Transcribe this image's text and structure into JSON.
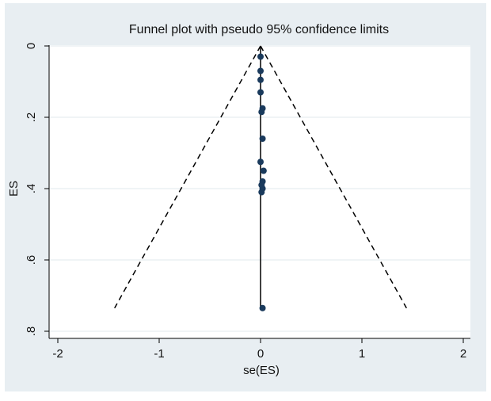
{
  "chart_data": {
    "type": "scatter",
    "title": "Funnel plot with pseudo 95% confidence limits",
    "xlabel": "se(ES)",
    "ylabel": "ES",
    "xlim": [
      -2,
      2
    ],
    "ylim": [
      0,
      0.8
    ],
    "y_reversed": true,
    "xticks": [
      -2,
      -1,
      0,
      1,
      2
    ],
    "xtick_labels": [
      "-2",
      "-1",
      "0",
      "1",
      "2"
    ],
    "yticks": [
      0,
      0.2,
      0.4,
      0.6,
      0.8
    ],
    "ytick_labels": [
      "0",
      ".2",
      ".4",
      ".6",
      ".8"
    ],
    "grid": true,
    "legend": "none",
    "points": [
      {
        "x": 0.0,
        "y": 0.03
      },
      {
        "x": 0.0,
        "y": 0.07
      },
      {
        "x": 0.0,
        "y": 0.095
      },
      {
        "x": 0.0,
        "y": 0.13
      },
      {
        "x": 0.02,
        "y": 0.175
      },
      {
        "x": 0.01,
        "y": 0.185
      },
      {
        "x": 0.02,
        "y": 0.26
      },
      {
        "x": 0.0,
        "y": 0.325
      },
      {
        "x": 0.03,
        "y": 0.35
      },
      {
        "x": 0.02,
        "y": 0.38
      },
      {
        "x": 0.01,
        "y": 0.39
      },
      {
        "x": 0.02,
        "y": 0.4
      },
      {
        "x": 0.01,
        "y": 0.41
      },
      {
        "x": 0.02,
        "y": 0.735
      }
    ],
    "center_line": {
      "x": 0,
      "y_from": 0,
      "y_to": 0.735
    },
    "confidence_limits": {
      "apex": {
        "x": 0,
        "y": 0
      },
      "left_end": {
        "x": -1.44,
        "y": 0.735
      },
      "right_end": {
        "x": 1.44,
        "y": 0.735
      }
    },
    "colors": {
      "marker": "#1a3a5c",
      "line": "#000000",
      "background": "#e8eef2",
      "plot_background": "#ffffff",
      "grid": "#e2e8ec"
    }
  }
}
